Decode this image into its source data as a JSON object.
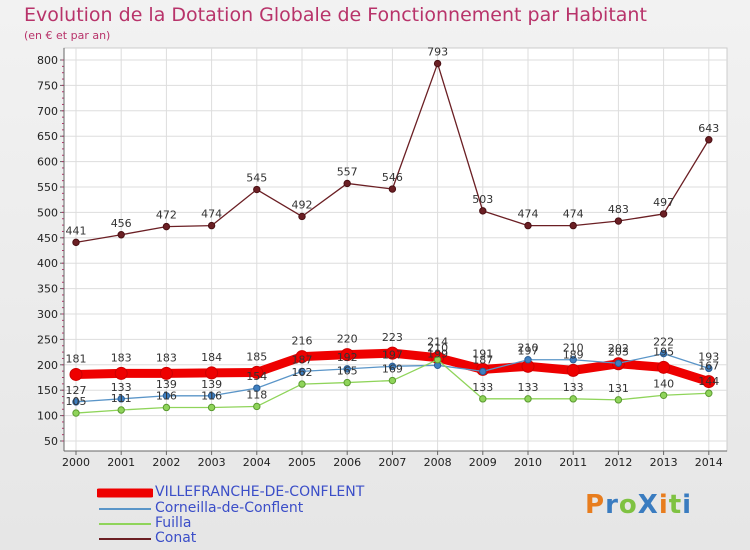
{
  "title": "Evolution de la Dotation Globale de Fonctionnement par Habitant",
  "subtitle": "(en € et par an)",
  "logo_text": "ProXiti",
  "chart_data": {
    "type": "line",
    "title": "Evolution de la Dotation Globale de Fonctionnement par Habitant",
    "ylabel": "(en € et par an)",
    "xlabel": "",
    "ylim": [
      50,
      800
    ],
    "yticks": [
      50,
      100,
      150,
      200,
      250,
      300,
      350,
      400,
      450,
      500,
      550,
      600,
      650,
      700,
      750,
      800
    ],
    "categories": [
      "2000",
      "2001",
      "2002",
      "2003",
      "2004",
      "2005",
      "2006",
      "2007",
      "2008",
      "2009",
      "2010",
      "2011",
      "2012",
      "2013",
      "2014"
    ],
    "grid": true,
    "legend_position": "bottom-left",
    "series": [
      {
        "name": "Conat",
        "color": "#6b1f24",
        "values": [
          441,
          456,
          472,
          474,
          545,
          492,
          557,
          546,
          793,
          503,
          474,
          474,
          483,
          497,
          643
        ]
      },
      {
        "name": "Corneilla-de-Conflent",
        "color": "#5a95c8",
        "values": [
          127,
          133,
          139,
          139,
          154,
          187,
          192,
          197,
          199,
          187,
          210,
          210,
          203,
          222,
          193
        ]
      },
      {
        "name": "Fuilla",
        "color": "#8fd45a",
        "values": [
          105,
          111,
          116,
          116,
          118,
          162,
          165,
          169,
          210,
          133,
          133,
          133,
          131,
          140,
          144
        ]
      },
      {
        "name": "VILLEFRANCHE-DE-CONFLENT",
        "color": "#ee0000",
        "values": [
          181,
          183,
          183,
          184,
          185,
          216,
          220,
          223,
          214,
          191,
          197,
          189,
          202,
          195,
          167
        ]
      }
    ],
    "value_labels": {
      "Conat": [
        "441",
        "456",
        "472",
        "474",
        "545",
        "492",
        "557",
        "546",
        "793",
        "503",
        "474",
        "474",
        "483",
        "497",
        "643"
      ],
      "Corneilla-de-Conflent": [
        "127",
        "133",
        "139",
        "139",
        "154",
        "187",
        "192",
        "197",
        "199",
        "187",
        "210",
        "210",
        "203",
        "222",
        "193"
      ],
      "Fuilla": [
        "105",
        "111",
        "116",
        "116",
        "118",
        "162",
        "165",
        "169",
        "210",
        "133",
        "133",
        "133",
        "131",
        "140",
        "144"
      ],
      "VILLEFRANCHE-DE-CONFLENT": [
        "181",
        "183",
        "183",
        "184",
        "185",
        "216",
        "220",
        "223",
        "214",
        "191",
        "197",
        "189",
        "202",
        "195",
        "167"
      ]
    }
  },
  "legend": [
    {
      "name": "VILLEFRANCHE-DE-CONFLENT",
      "color": "#ee0000",
      "thickness": "thick"
    },
    {
      "name": "Corneilla-de-Conflent",
      "color": "#5a95c8",
      "thickness": "thin"
    },
    {
      "name": "Fuilla",
      "color": "#8fd45a",
      "thickness": "thin"
    },
    {
      "name": "Conat",
      "color": "#6b1f24",
      "thickness": "thin"
    }
  ]
}
